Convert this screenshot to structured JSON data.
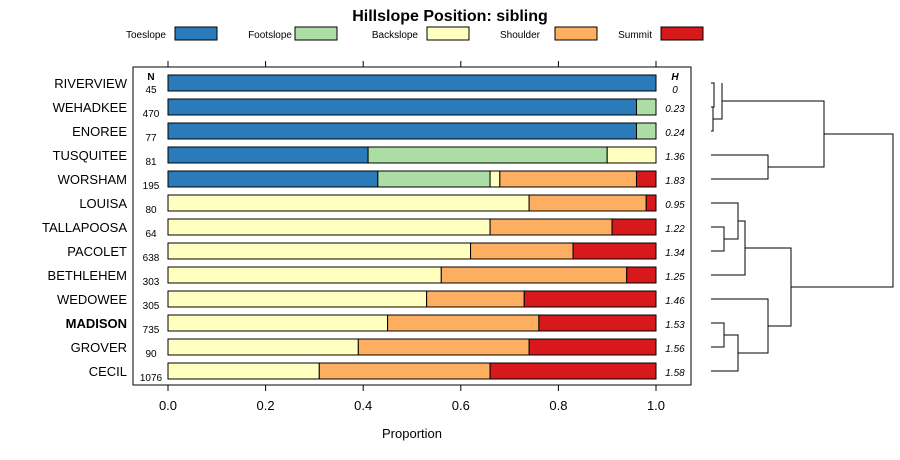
{
  "chart_data": {
    "type": "bar",
    "stacked": true,
    "orientation": "horizontal",
    "title": "Hillslope Position: sibling",
    "xlabel": "Proportion",
    "ylabel": "",
    "xlim": [
      0,
      1
    ],
    "x_ticks": [
      "0.0",
      "0.2",
      "0.4",
      "0.6",
      "0.8",
      "1.0"
    ],
    "n_header": "N",
    "h_header": "H",
    "highlight": "MADISON",
    "legend": [
      {
        "name": "Toeslope",
        "color": "#2b7bba"
      },
      {
        "name": "Footslope",
        "color": "#abdda4"
      },
      {
        "name": "Backslope",
        "color": "#ffffbf"
      },
      {
        "name": "Shoulder",
        "color": "#fdae61"
      },
      {
        "name": "Summit",
        "color": "#d7191c"
      }
    ],
    "categories": [
      "RIVERVIEW",
      "WEHADKEE",
      "ENOREE",
      "TUSQUITEE",
      "WORSHAM",
      "LOUISA",
      "TALLAPOOSA",
      "PACOLET",
      "BETHLEHEM",
      "WEDOWEE",
      "MADISON",
      "GROVER",
      "CECIL"
    ],
    "n": [
      "45",
      "470",
      "77",
      "81",
      "195",
      "80",
      "64",
      "638",
      "303",
      "305",
      "735",
      "90",
      "1076"
    ],
    "h": [
      "0",
      "0.23",
      "0.24",
      "1.36",
      "1.83",
      "0.95",
      "1.22",
      "1.34",
      "1.25",
      "1.46",
      "1.53",
      "1.56",
      "1.58"
    ],
    "series": [
      {
        "name": "Toeslope",
        "values": [
          1.0,
          0.96,
          0.96,
          0.41,
          0.43,
          0.0,
          0.0,
          0.0,
          0.0,
          0.0,
          0.0,
          0.0,
          0.0
        ]
      },
      {
        "name": "Footslope",
        "values": [
          0.0,
          0.04,
          0.04,
          0.49,
          0.23,
          0.0,
          0.0,
          0.0,
          0.0,
          0.0,
          0.0,
          0.0,
          0.0
        ]
      },
      {
        "name": "Backslope",
        "values": [
          0.0,
          0.0,
          0.0,
          0.1,
          0.02,
          0.74,
          0.66,
          0.62,
          0.56,
          0.53,
          0.45,
          0.39,
          0.31
        ]
      },
      {
        "name": "Shoulder",
        "values": [
          0.0,
          0.0,
          0.0,
          0.0,
          0.28,
          0.24,
          0.25,
          0.21,
          0.38,
          0.2,
          0.31,
          0.35,
          0.35
        ]
      },
      {
        "name": "Summit",
        "values": [
          0.0,
          0.0,
          0.0,
          0.0,
          0.04,
          0.02,
          0.09,
          0.17,
          0.06,
          0.27,
          0.24,
          0.26,
          0.34
        ]
      }
    ]
  }
}
